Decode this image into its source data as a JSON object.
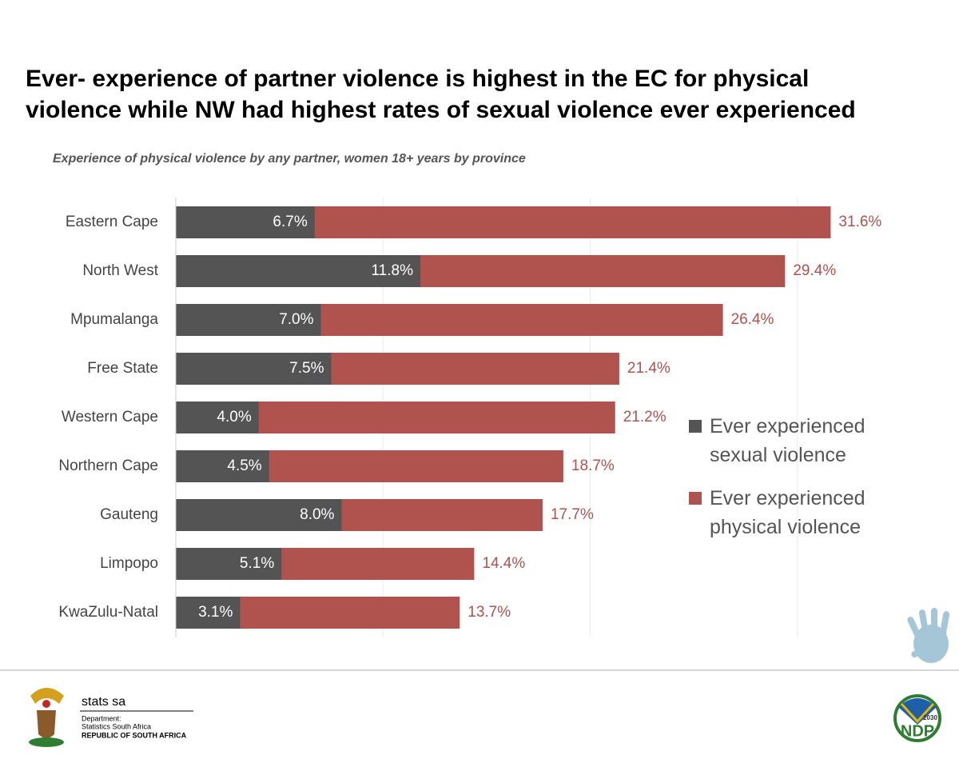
{
  "chart_data": {
    "type": "hbar_overlap",
    "title": [
      "Ever- experience of partner violence is highest in the EC for physical",
      "violence while NW had highest rates of sexual violence ever experienced"
    ],
    "subtitle": "Experience of physical violence by any partner, women 18+ years by province",
    "categories": [
      "Eastern Cape",
      "North West",
      "Mpumalanga",
      "Free State",
      "Western Cape",
      "Northern Cape",
      "Gauteng",
      "Limpopo",
      "KwaZulu-Natal"
    ],
    "series": [
      {
        "name": "Ever experienced physical violence",
        "color": "#b0524e",
        "values": [
          31.6,
          29.4,
          26.4,
          21.4,
          21.2,
          18.7,
          17.7,
          14.4,
          13.7
        ],
        "value_labels": [
          "31.6%",
          "29.4%",
          "26.4%",
          "21.4%",
          "21.2%",
          "18.7%",
          "17.7%",
          "14.4%",
          "13.7%"
        ]
      },
      {
        "name": "Ever experienced sexual violence",
        "color": "#545454",
        "values": [
          6.7,
          11.8,
          7.0,
          7.5,
          4.0,
          4.5,
          8.0,
          5.1,
          3.1
        ],
        "value_labels": [
          "6.7%",
          "11.8%",
          "7.0%",
          "7.5%",
          "4.0%",
          "4.5%",
          "8.0%",
          "5.1%",
          "3.1%"
        ]
      }
    ],
    "xlim": [
      0,
      37.6
    ],
    "xticks": [
      0,
      10,
      20,
      30
    ],
    "grid": true
  },
  "footer": {
    "org_name": "stats sa",
    "dept_label": "Department:",
    "dept_name": "Statistics South Africa",
    "country": "REPUBLIC OF SOUTH AFRICA",
    "ndp": "NDP",
    "ndp_year": "2030"
  }
}
